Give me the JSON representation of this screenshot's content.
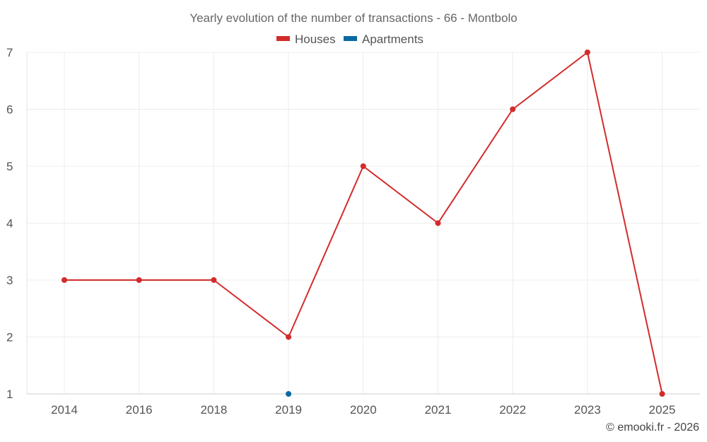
{
  "chart_data": {
    "type": "line",
    "title": "Yearly evolution of the number of transactions - 66 - Montbolo",
    "categories": [
      "2014",
      "2016",
      "2018",
      "2019",
      "2020",
      "2021",
      "2022",
      "2023",
      "2025"
    ],
    "series": [
      {
        "name": "Houses",
        "color": "#d32b2b",
        "values": [
          3,
          3,
          3,
          2,
          5,
          4,
          6,
          7,
          1
        ]
      },
      {
        "name": "Apartments",
        "color": "#0b6aa2",
        "values": [
          null,
          null,
          null,
          1,
          null,
          null,
          null,
          null,
          null
        ]
      }
    ],
    "y_ticks": [
      "1",
      "2",
      "3",
      "4",
      "5",
      "6",
      "7"
    ],
    "ylim": [
      1,
      7
    ],
    "xlabel": "",
    "ylabel": "",
    "grid": true,
    "legend_position": "top-center"
  },
  "credit": "© emooki.fr - 2026"
}
